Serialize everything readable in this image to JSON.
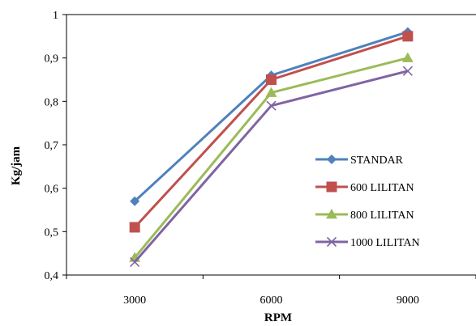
{
  "chart_data": {
    "type": "line",
    "title": "",
    "xlabel": "RPM",
    "ylabel": "Kg/jam",
    "categories": [
      "3000",
      "6000",
      "9000"
    ],
    "ylim": [
      0.4,
      1.0
    ],
    "yticks": [
      "0,4",
      "0,5",
      "0,6",
      "0,7",
      "0,8",
      "0,9",
      "1"
    ],
    "ytick_values": [
      0.4,
      0.5,
      0.6,
      0.7,
      0.8,
      0.9,
      1.0
    ],
    "grid": false,
    "legend_position": "right",
    "series": [
      {
        "name": "STANDAR",
        "values": [
          0.57,
          0.86,
          0.96
        ],
        "color": "#4f81bd",
        "marker": "diamond"
      },
      {
        "name": "600 LILITAN",
        "values": [
          0.51,
          0.85,
          0.95
        ],
        "color": "#c0504d",
        "marker": "square"
      },
      {
        "name": "800 LILITAN",
        "values": [
          0.44,
          0.82,
          0.9
        ],
        "color": "#9bbb59",
        "marker": "triangle"
      },
      {
        "name": "1000 LILITAN",
        "values": [
          0.43,
          0.79,
          0.87
        ],
        "color": "#8064a2",
        "marker": "x"
      }
    ]
  }
}
